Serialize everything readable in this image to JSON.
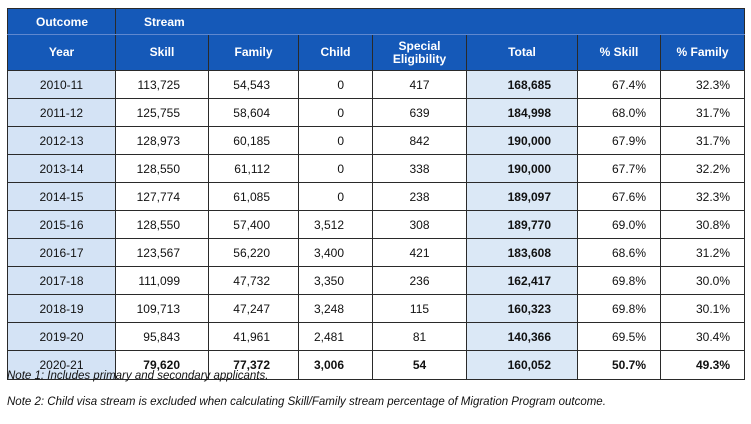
{
  "table": {
    "group_headers": [
      "Outcome",
      "Stream"
    ],
    "columns": [
      "Year",
      "Skill",
      "Family",
      "Child",
      "Special Eligibility",
      "Total",
      "% Skill",
      "% Family"
    ],
    "rows": [
      {
        "year": "2010-11",
        "skill": "113,725",
        "family": "54,543",
        "child": "0",
        "special": "417",
        "total": "168,685",
        "pct_skill": "67.4%",
        "pct_family": "32.3%"
      },
      {
        "year": "2011-12",
        "skill": "125,755",
        "family": "58,604",
        "child": "0",
        "special": "639",
        "total": "184,998",
        "pct_skill": "68.0%",
        "pct_family": "31.7%"
      },
      {
        "year": "2012-13",
        "skill": "128,973",
        "family": "60,185",
        "child": "0",
        "special": "842",
        "total": "190,000",
        "pct_skill": "67.9%",
        "pct_family": "31.7%"
      },
      {
        "year": "2013-14",
        "skill": "128,550",
        "family": "61,112",
        "child": "0",
        "special": "338",
        "total": "190,000",
        "pct_skill": "67.7%",
        "pct_family": "32.2%"
      },
      {
        "year": "2014-15",
        "skill": "127,774",
        "family": "61,085",
        "child": "0",
        "special": "238",
        "total": "189,097",
        "pct_skill": "67.6%",
        "pct_family": "32.3%"
      },
      {
        "year": "2015-16",
        "skill": "128,550",
        "family": "57,400",
        "child": "3,512",
        "special": "308",
        "total": "189,770",
        "pct_skill": "69.0%",
        "pct_family": "30.8%"
      },
      {
        "year": "2016-17",
        "skill": "123,567",
        "family": "56,220",
        "child": "3,400",
        "special": "421",
        "total": "183,608",
        "pct_skill": "68.6%",
        "pct_family": "31.2%"
      },
      {
        "year": "2017-18",
        "skill": "111,099",
        "family": "47,732",
        "child": "3,350",
        "special": "236",
        "total": "162,417",
        "pct_skill": "69.8%",
        "pct_family": "30.0%"
      },
      {
        "year": "2018-19",
        "skill": "109,713",
        "family": "47,247",
        "child": "3,248",
        "special": "115",
        "total": "160,323",
        "pct_skill": "69.8%",
        "pct_family": "30.1%"
      },
      {
        "year": "2019-20",
        "skill": "95,843",
        "family": "41,961",
        "child": "2,481",
        "special": "81",
        "total": "140,366",
        "pct_skill": "69.5%",
        "pct_family": "30.4%"
      },
      {
        "year": "2020-21",
        "skill": "79,620",
        "family": "77,372",
        "child": "3,006",
        "special": "54",
        "total": "160,052",
        "pct_skill": "50.7%",
        "pct_family": "49.3%"
      }
    ]
  },
  "notes": [
    "Note 1: Includes primary and secondary applicants.",
    "Note 2: Child visa stream is excluded when calculating Skill/Family stream percentage of Migration Program outcome."
  ],
  "colors": {
    "header_bg": "#1559b8",
    "year_bg": "#d4e3f5",
    "total_bg": "#dbe8f6"
  }
}
